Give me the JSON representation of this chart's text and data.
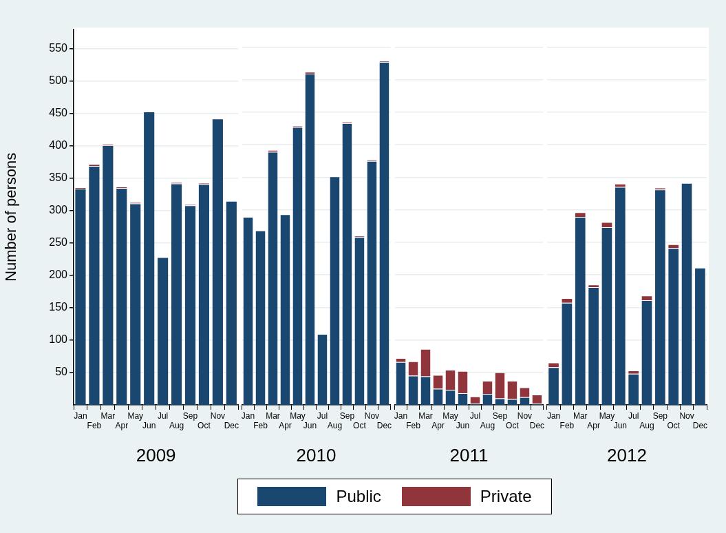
{
  "chart_data": [
    {
      "type": "bar",
      "stacked": true,
      "xlabel": "2009",
      "ylabel": "Number of persons",
      "categories": [
        "Jan",
        "Feb",
        "Mar",
        "Apr",
        "May",
        "Jun",
        "Jul",
        "Aug",
        "Sep",
        "Oct",
        "Nov",
        "Dec"
      ],
      "ylim": [
        0,
        580
      ],
      "yticks": [
        50,
        100,
        150,
        200,
        250,
        300,
        350,
        400,
        450,
        500,
        550
      ],
      "grid": "y",
      "legend": "bottom",
      "series": [
        {
          "name": "Public",
          "color": "#1a476f",
          "values": [
            334,
            369,
            401,
            335,
            311,
            453,
            228,
            342,
            308,
            341,
            442,
            315
          ]
        },
        {
          "name": "Private",
          "color": "#90353b",
          "values": [
            2,
            3,
            2,
            2,
            2,
            0,
            0,
            2,
            2,
            2,
            0,
            0
          ]
        }
      ]
    },
    {
      "type": "bar",
      "stacked": true,
      "xlabel": "2010",
      "categories": [
        "Jan",
        "Feb",
        "Mar",
        "Apr",
        "May",
        "Jun",
        "Jul",
        "Aug",
        "Sep",
        "Oct",
        "Nov",
        "Dec"
      ],
      "ylim": [
        0,
        580
      ],
      "yticks": [
        50,
        100,
        150,
        200,
        250,
        300,
        350,
        400,
        450,
        500,
        550
      ],
      "grid": "y",
      "tick_labels": "x",
      "series": [
        {
          "color": "#1a476f",
          "values": [
            289,
            268,
            389,
            293,
            427,
            509,
            109,
            351,
            433,
            258,
            375,
            527
          ]
        },
        {
          "color": "#90353b",
          "values": [
            0,
            0,
            3,
            0,
            2,
            3,
            0,
            0,
            2,
            2,
            2,
            2
          ]
        }
      ]
    },
    {
      "type": "bar",
      "stacked": true,
      "xlabel": "2011",
      "categories": [
        "Jan",
        "Feb",
        "Mar",
        "Apr",
        "May",
        "Jun",
        "Jul",
        "Aug",
        "Sep",
        "Oct",
        "Nov",
        "Dec"
      ],
      "ylim": [
        0,
        580
      ],
      "yticks": [
        50,
        100,
        150,
        200,
        250,
        300,
        350,
        400,
        450,
        500,
        550
      ],
      "grid": "y",
      "tick_labels": "x",
      "series": [
        {
          "color": "#1a476f",
          "values": [
            66,
            45,
            44,
            25,
            23,
            18,
            2,
            17,
            10,
            9,
            12,
            2
          ]
        },
        {
          "color": "#90353b",
          "values": [
            6,
            22,
            42,
            21,
            31,
            34,
            11,
            20,
            40,
            28,
            15,
            14
          ]
        }
      ]
    },
    {
      "type": "bar",
      "stacked": true,
      "xlabel": "2012",
      "categories": [
        "Jan",
        "Feb",
        "Mar",
        "Apr",
        "May",
        "Jun",
        "Jul",
        "Aug",
        "Sep",
        "Oct",
        "Nov",
        "Dec"
      ],
      "ylim": [
        0,
        580
      ],
      "yticks": [
        50,
        100,
        150,
        200,
        250,
        300,
        350,
        400,
        450,
        500,
        550
      ],
      "grid": "y",
      "tick_labels": "x",
      "series": [
        {
          "color": "#1a476f",
          "values": [
            58,
            157,
            289,
            181,
            273,
            335,
            48,
            161,
            331,
            241,
            341,
            211
          ]
        },
        {
          "color": "#90353b",
          "values": [
            7,
            7,
            7,
            4,
            8,
            5,
            5,
            7,
            3,
            6,
            0,
            0
          ]
        }
      ]
    }
  ]
}
